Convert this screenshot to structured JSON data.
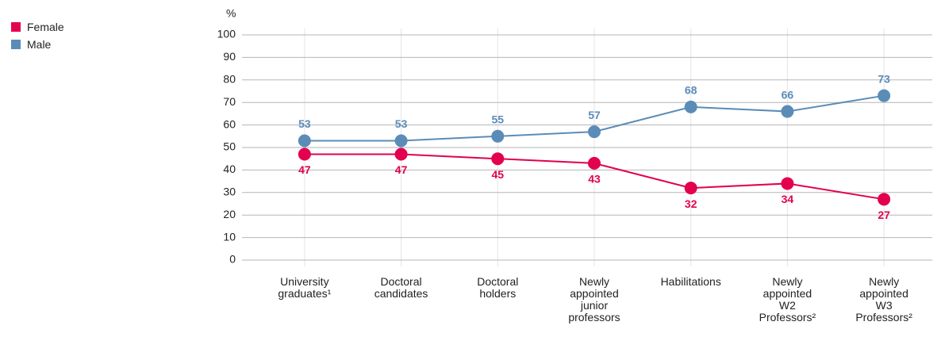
{
  "chart_data": {
    "type": "line",
    "y_label": "%",
    "categories": [
      "University graduates¹",
      "Doctoral candidates",
      "Doctoral holders",
      "Newly appointed junior professors",
      "Habilitations",
      "Newly appointed W2 Professors²",
      "Newly appointed W3 Professors²"
    ],
    "series": [
      {
        "name": "Female",
        "color": "#e2004f",
        "values": [
          47,
          47,
          45,
          43,
          32,
          34,
          27
        ]
      },
      {
        "name": "Male",
        "color": "#5b8cb8",
        "values": [
          53,
          53,
          55,
          57,
          68,
          66,
          73
        ]
      }
    ],
    "ylim": [
      0,
      100
    ],
    "yticks": [
      0,
      10,
      20,
      30,
      40,
      50,
      60,
      70,
      80,
      90,
      100
    ],
    "grid": true,
    "legend": "top-left"
  }
}
